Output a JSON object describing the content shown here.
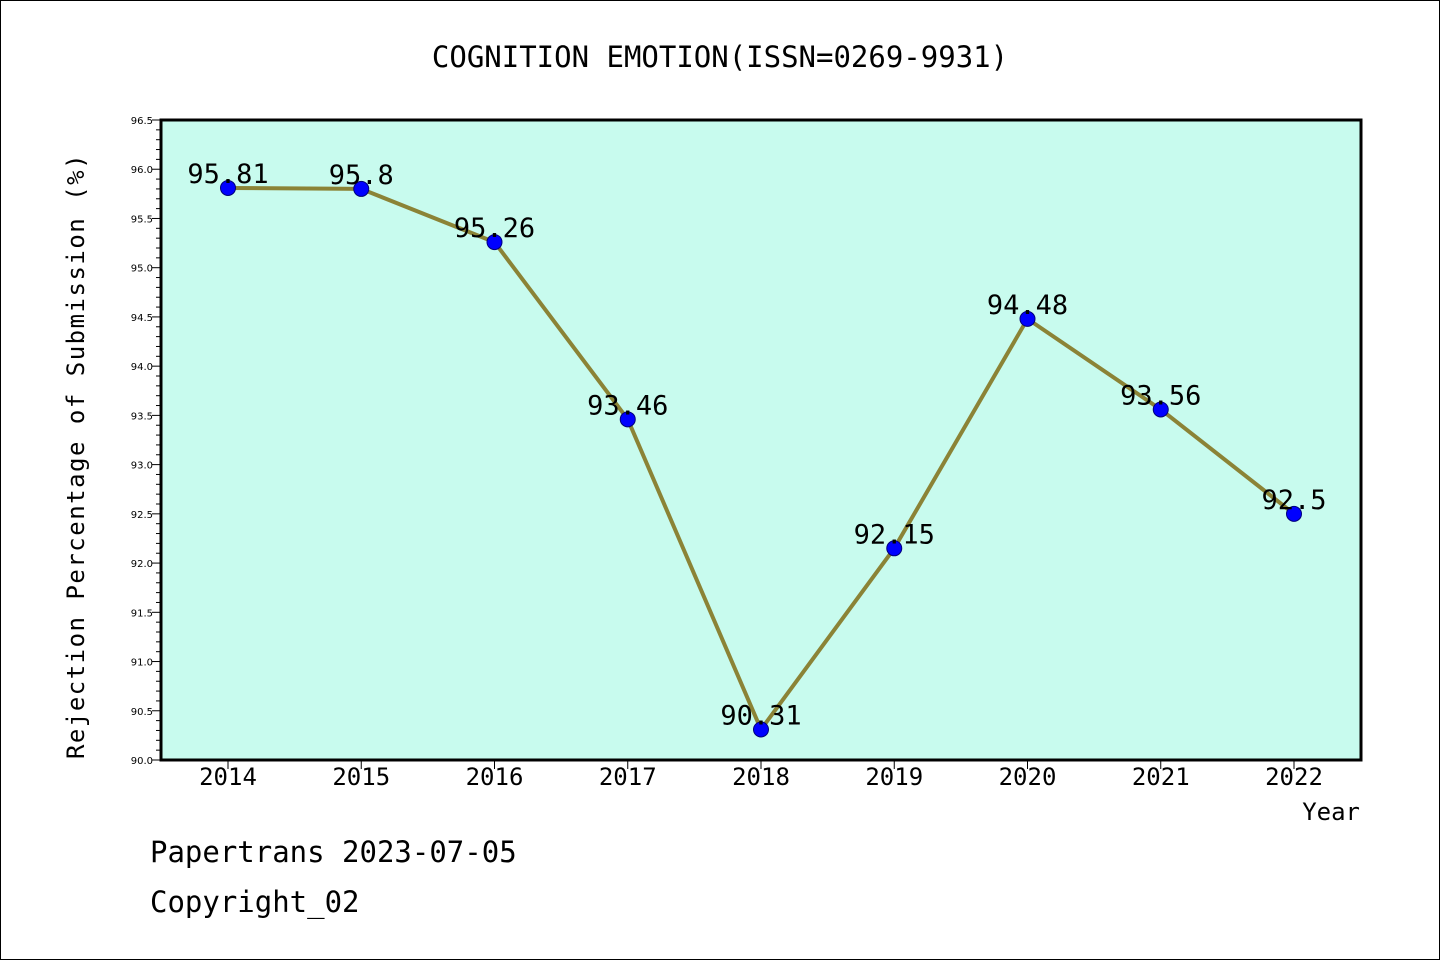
{
  "chart_data": {
    "type": "line",
    "title": "COGNITION EMOTION(ISSN=0269-9931)",
    "xlabel": "Year",
    "ylabel": "Rejection Percentage of Submission (%)",
    "categories": [
      "2014",
      "2015",
      "2016",
      "2017",
      "2018",
      "2019",
      "2020",
      "2021",
      "2022"
    ],
    "series": [
      {
        "values": [
          95.81,
          95.8,
          95.26,
          93.46,
          90.31,
          92.15,
          94.48,
          93.56,
          92.5
        ]
      }
    ],
    "data_labels": [
      "95.81",
      "95.8",
      "95.26",
      "93.46",
      "90.31",
      "92.15",
      "94.48",
      "93.56",
      "92.5"
    ],
    "ylim": [
      90.0,
      96.5
    ],
    "yticks": [
      "90.0",
      "90.5",
      "91.0",
      "91.5",
      "92.0",
      "92.5",
      "93.0",
      "93.5",
      "94.0",
      "94.5",
      "95.0",
      "95.5",
      "96.0",
      "96.5"
    ],
    "grid": false,
    "colors": {
      "plot_background": "#c8fbee",
      "line": "#8b8336",
      "marker": "#0000ff"
    }
  },
  "footer": {
    "line1": "Papertrans 2023-07-05",
    "line2": "Copyright_02"
  }
}
